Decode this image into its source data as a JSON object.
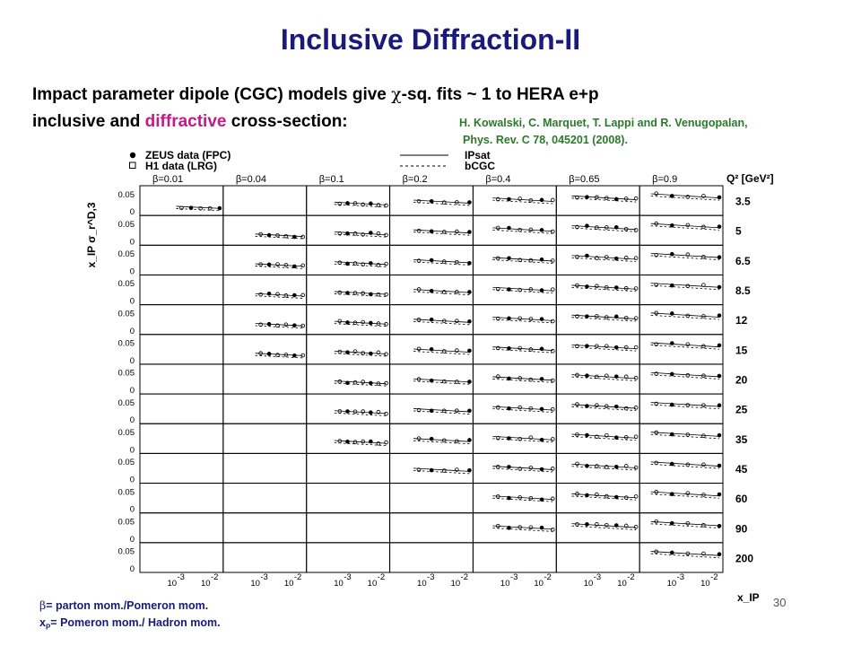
{
  "title": "Inclusive Diffraction-II",
  "intro": {
    "part1": "Impact parameter dipole (CGC) models give ",
    "chi": "χ",
    "part2": "-sq. fits ~ 1 to HERA e+p",
    "part3": "inclusive and ",
    "red": "diffractive",
    "part4": " cross-section:"
  },
  "reference": {
    "line1": "H. Kowalski, C. Marquet, T. Lappi and R. Venugopalan,",
    "line2": "Phys. Rev. C 78, 045201 (2008)."
  },
  "notes": {
    "beta_symbol": "β",
    "beta_text": "= parton mom./Pomeron mom.",
    "xp_sym": "x",
    "xp_sub": "P",
    "xp_text": "= Pomeron mom./ Hadron mom."
  },
  "page_number": "30",
  "colors": {
    "title": "#1a1a7a",
    "highlight": "#c21a8a",
    "reference": "#2b7a2b",
    "notes": "#1a1a7a"
  },
  "chart_data": {
    "type": "scatter",
    "layout": "grid",
    "legend": {
      "placement": "top",
      "markers": [
        {
          "label": "ZEUS data (FPC)",
          "marker": "filled-circle"
        },
        {
          "label": "H1 data (LRG)",
          "marker": "open-square"
        }
      ],
      "lines": [
        {
          "label": "IPsat",
          "style": "solid"
        },
        {
          "label": "bCGC",
          "style": "dashed"
        }
      ]
    },
    "ylabel": "x_IP σ_r^D,3",
    "xlabel": "x_IP",
    "q2_label": "Q² [GeV²]",
    "beta_labels": [
      "β=0.01",
      "β=0.04",
      "β=0.1",
      "β=0.2",
      "β=0.4",
      "β=0.65",
      "β=0.9"
    ],
    "q2_values": [
      "3.5",
      "5",
      "6.5",
      "8.5",
      "12",
      "15",
      "20",
      "25",
      "35",
      "45",
      "60",
      "90",
      "200"
    ],
    "ytick_labels": [
      "0.05",
      "0"
    ],
    "ylim": [
      0,
      0.07
    ],
    "xtick_labels": [
      "10",
      "-3",
      "10",
      "-2"
    ],
    "xscale": "log",
    "xlim": [
      0.0001,
      0.03
    ],
    "panels_with_data": [
      [
        1,
        0,
        1,
        1,
        1,
        1,
        1
      ],
      [
        0,
        1,
        1,
        1,
        1,
        1,
        1
      ],
      [
        0,
        1,
        1,
        1,
        1,
        1,
        1
      ],
      [
        0,
        1,
        1,
        1,
        1,
        1,
        1
      ],
      [
        0,
        1,
        1,
        1,
        1,
        1,
        1
      ],
      [
        0,
        1,
        1,
        1,
        1,
        1,
        1
      ],
      [
        0,
        0,
        1,
        1,
        1,
        1,
        1
      ],
      [
        0,
        0,
        1,
        1,
        1,
        1,
        1
      ],
      [
        0,
        0,
        1,
        1,
        1,
        1,
        1
      ],
      [
        0,
        0,
        0,
        1,
        1,
        1,
        1
      ],
      [
        0,
        0,
        0,
        0,
        1,
        1,
        1
      ],
      [
        0,
        0,
        0,
        0,
        1,
        1,
        1
      ],
      [
        0,
        0,
        0,
        0,
        0,
        0,
        1
      ]
    ]
  }
}
